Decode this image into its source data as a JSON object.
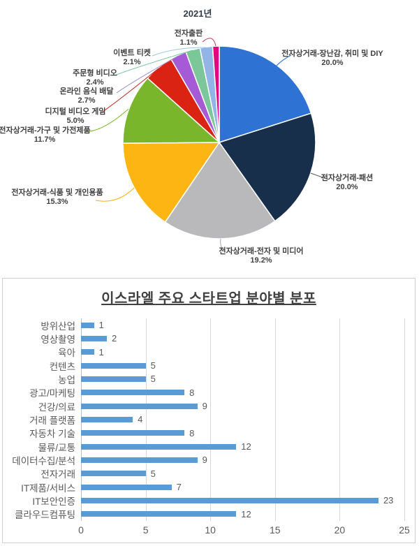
{
  "chart_data": [
    {
      "type": "pie",
      "title": "2021년",
      "legend_position": "none",
      "labels_style": "callout labels with percent",
      "slices": [
        {
          "label": "전자상거래-장난감, 취미 및 DIY",
          "pct_label": "20.0%",
          "value": 20.0,
          "color": "#2e72d4"
        },
        {
          "label": "전자상거래-패션",
          "pct_label": "20.0%",
          "value": 20.0,
          "color": "#182f4c"
        },
        {
          "label": "전자상거래-전자 및 미디어",
          "pct_label": "19.2%",
          "value": 19.2,
          "color": "#b9b9bb"
        },
        {
          "label": "전자상거래-식품 및 개인용품",
          "pct_label": "15.3%",
          "value": 15.3,
          "color": "#fdb513"
        },
        {
          "label": "전자상거래-가구 및 가전제품",
          "pct_label": "11.7%",
          "value": 11.7,
          "color": "#7ab62c"
        },
        {
          "label": "디지털 비디오 게임",
          "pct_label": "5.0%",
          "value": 5.0,
          "color": "#da2313"
        },
        {
          "label": "온라인 음식 배달",
          "pct_label": "2.7%",
          "value": 2.7,
          "color": "#a55bd5"
        },
        {
          "label": "주문형 비디오",
          "pct_label": "2.4%",
          "value": 2.4,
          "color": "#7cc79a"
        },
        {
          "label": "이벤트 티켓",
          "pct_label": "2.1%",
          "value": 2.1,
          "color": "#92b4e6"
        },
        {
          "label": "전자출판",
          "pct_label": "1.1%",
          "value": 1.1,
          "color": "#e00a7e"
        }
      ]
    },
    {
      "type": "bar",
      "orientation": "horizontal",
      "title": "이스라엘 주요 스타트업 분야별 분포",
      "categories": [
        "방위산업",
        "영상촬영",
        "육아",
        "컨텐츠",
        "농업",
        "광고/마케팅",
        "건강/의료",
        "거래 플랫폼",
        "자동차 기술",
        "물류/교통",
        "데이터수집/분석",
        "전자거래",
        "IT제품/서비스",
        "IT보안인증",
        "클라우드컴퓨팅"
      ],
      "values": [
        1,
        2,
        1,
        5,
        5,
        8,
        9,
        4,
        8,
        12,
        9,
        5,
        7,
        23,
        12
      ],
      "xlabel": "",
      "ylabel": "",
      "xlim": [
        0,
        25
      ],
      "xticks": [
        0,
        5,
        10,
        15,
        20,
        25
      ],
      "grid": true,
      "bar_color": "#5b9bd5",
      "gridline_color": "#d9d9d9",
      "value_labels_shown": true
    }
  ]
}
